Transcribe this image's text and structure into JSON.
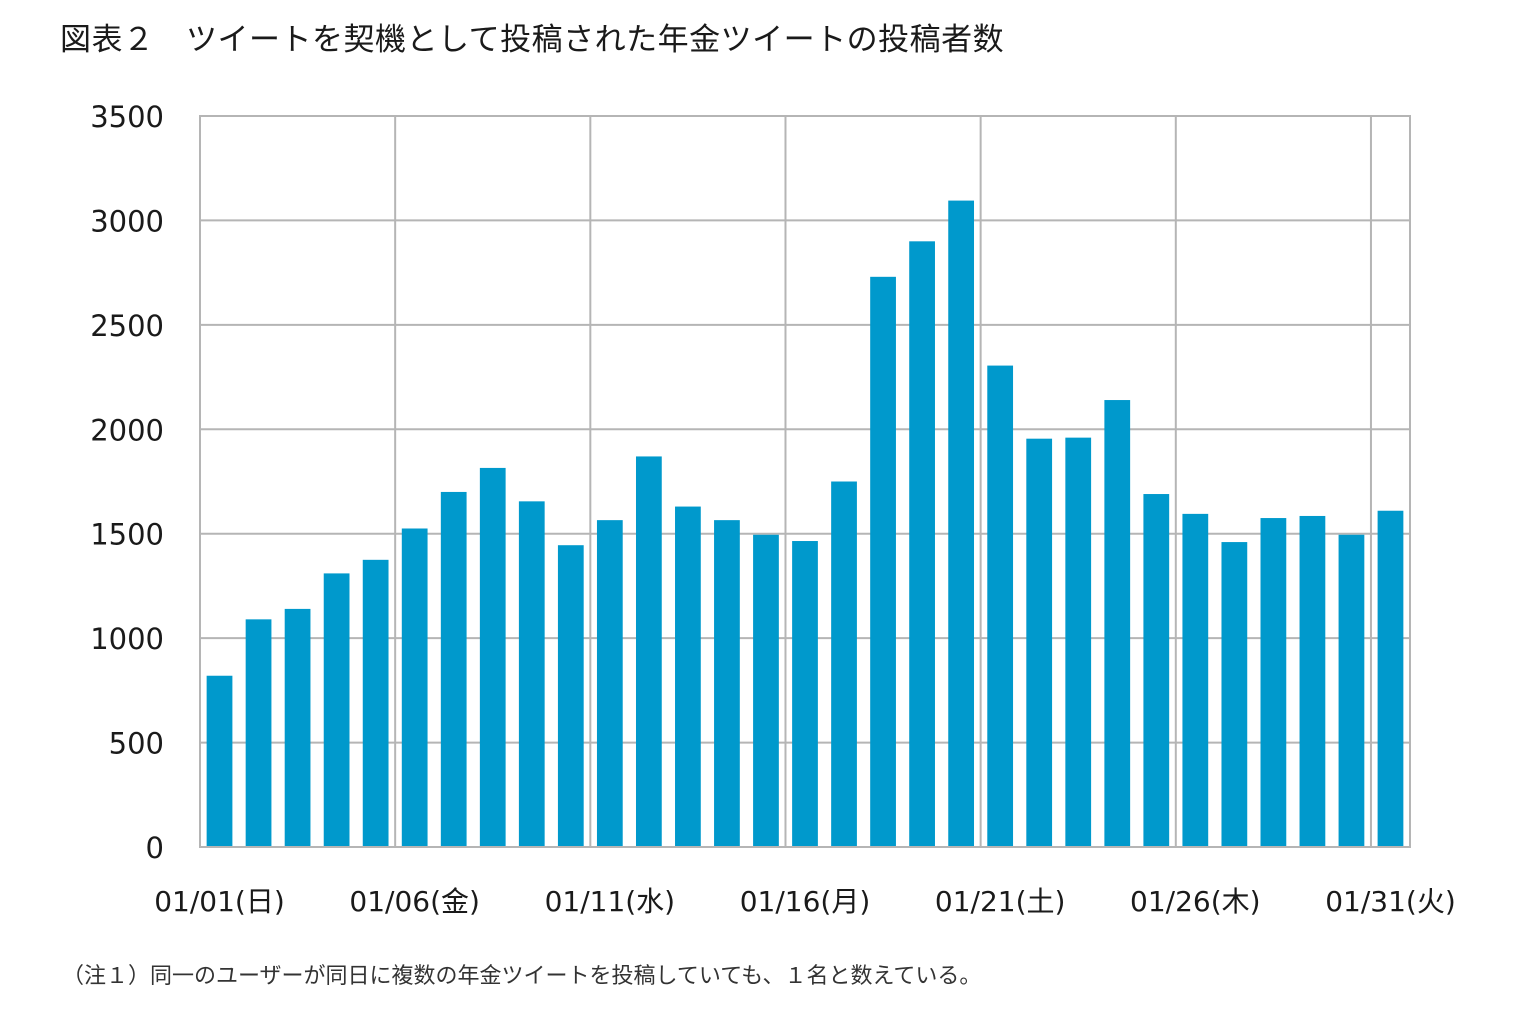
{
  "figure": {
    "title": "図表２　ツイートを契機として投稿された年金ツイートの投稿者数",
    "note": "（注１）同一のユーザーが同日に複数の年金ツイートを投稿していても、１名と数えている。"
  },
  "chart_data": {
    "type": "bar",
    "title": "",
    "xlabel": "",
    "ylabel": "",
    "ylim": [
      0,
      3500
    ],
    "yticks": [
      0,
      500,
      1000,
      1500,
      2000,
      2500,
      3000,
      3500
    ],
    "grid": true,
    "bar_color": "#0099CC",
    "categories": [
      "01/01",
      "01/02",
      "01/03",
      "01/04",
      "01/05",
      "01/06",
      "01/07",
      "01/08",
      "01/09",
      "01/10",
      "01/11",
      "01/12",
      "01/13",
      "01/14",
      "01/15",
      "01/16",
      "01/17",
      "01/18",
      "01/19",
      "01/20",
      "01/21",
      "01/22",
      "01/23",
      "01/24",
      "01/25",
      "01/26",
      "01/27",
      "01/28",
      "01/29",
      "01/30",
      "01/31"
    ],
    "x_tick_labels": [
      {
        "index": 0,
        "label": "01/01(日)"
      },
      {
        "index": 5,
        "label": "01/06(金)"
      },
      {
        "index": 10,
        "label": "01/11(水)"
      },
      {
        "index": 15,
        "label": "01/16(月)"
      },
      {
        "index": 20,
        "label": "01/21(土)"
      },
      {
        "index": 25,
        "label": "01/26(木)"
      },
      {
        "index": 30,
        "label": "01/31(火)"
      }
    ],
    "values": [
      820,
      1090,
      1140,
      1310,
      1375,
      1525,
      1700,
      1815,
      1655,
      1445,
      1565,
      1870,
      1630,
      1565,
      1495,
      1465,
      1750,
      2730,
      2900,
      3095,
      2305,
      1955,
      1960,
      2140,
      1690,
      1595,
      1460,
      1575,
      1585,
      1495,
      1610
    ]
  }
}
